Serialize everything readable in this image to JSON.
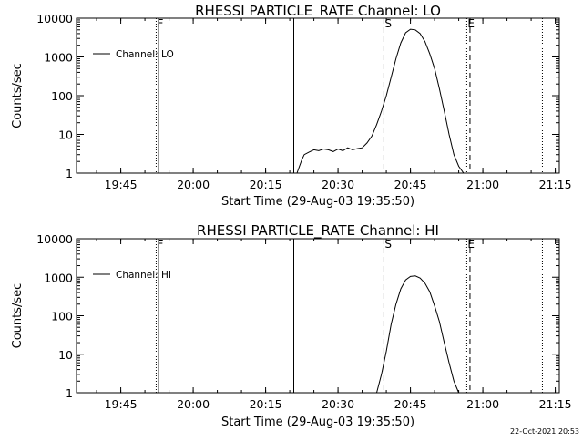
{
  "footer": {
    "timestamp": "22-Oct-2021 20:53"
  },
  "markers": [
    {
      "label": "F",
      "time": "19:52:20",
      "style": "dotted"
    },
    {
      "label": "",
      "time": "19:52:50",
      "style": "solid"
    },
    {
      "label": "",
      "time": "20:20:50",
      "style": "solid"
    },
    {
      "label": "S",
      "time": "20:39:30",
      "style": "dashed"
    },
    {
      "label": "E",
      "time": "20:56:40",
      "style": "dotted"
    },
    {
      "label": "",
      "time": "20:57:20",
      "style": "dashed"
    },
    {
      "label": "",
      "time": "21:12:20",
      "style": "dotted"
    }
  ],
  "chart_data": [
    {
      "type": "line",
      "title": "RHESSI PARTICLE_RATE Channel: LO",
      "xlabel": "Start Time (29-Aug-03 19:35:50)",
      "ylabel": "Counts/sec",
      "xlim": [
        "19:35:50",
        "21:15:50"
      ],
      "x_ticks": [
        "19:45",
        "20:00",
        "20:15",
        "20:30",
        "20:45",
        "21:00",
        "21:15"
      ],
      "y_scale": "log",
      "ylim": [
        1,
        10000
      ],
      "y_ticks": [
        "1",
        "10",
        "100",
        "1000",
        "10000"
      ],
      "legend": "top-left",
      "series": [
        {
          "name": "Channel: LO",
          "x": [
            "20:21:30",
            "20:22:30",
            "20:23:00",
            "20:24:00",
            "20:25:00",
            "20:26:00",
            "20:27:00",
            "20:28:00",
            "20:29:00",
            "20:30:00",
            "20:31:00",
            "20:32:00",
            "20:33:00",
            "20:34:00",
            "20:35:00",
            "20:36:00",
            "20:37:00",
            "20:38:00",
            "20:39:00",
            "20:40:00",
            "20:41:00",
            "20:42:00",
            "20:43:00",
            "20:44:00",
            "20:45:00",
            "20:46:00",
            "20:47:00",
            "20:48:00",
            "20:49:00",
            "20:50:00",
            "20:51:00",
            "20:52:00",
            "20:53:00",
            "20:54:00",
            "20:55:00",
            "20:56:00"
          ],
          "values": [
            1.0,
            2.2,
            3.0,
            3.5,
            4.0,
            3.8,
            4.2,
            4.0,
            3.6,
            4.2,
            3.8,
            4.5,
            4.0,
            4.3,
            4.5,
            6.0,
            9.0,
            18,
            40,
            100,
            300,
            900,
            2300,
            4200,
            5200,
            5000,
            4000,
            2500,
            1200,
            500,
            150,
            40,
            10,
            3,
            1.5,
            1.0
          ]
        }
      ]
    },
    {
      "type": "line",
      "title": "RHESSI PARTICLE_RATE Channel: HI",
      "xlabel": "Start Time (29-Aug-03 19:35:50)",
      "ylabel": "Counts/sec",
      "xlim": [
        "19:35:50",
        "21:15:50"
      ],
      "x_ticks": [
        "19:45",
        "20:00",
        "20:15",
        "20:30",
        "20:45",
        "21:00",
        "21:15"
      ],
      "y_scale": "log",
      "ylim": [
        1,
        10000
      ],
      "y_ticks": [
        "1",
        "10",
        "100",
        "1000",
        "10000"
      ],
      "legend": "top-left",
      "series": [
        {
          "name": "Channel: HI",
          "x": [
            "20:38:00",
            "20:39:00",
            "20:40:00",
            "20:41:00",
            "20:42:00",
            "20:43:00",
            "20:44:00",
            "20:45:00",
            "20:46:00",
            "20:47:00",
            "20:48:00",
            "20:49:00",
            "20:50:00",
            "20:51:00",
            "20:52:00",
            "20:53:00",
            "20:54:00",
            "20:55:00"
          ],
          "values": [
            1.0,
            3.0,
            12,
            60,
            200,
            500,
            850,
            1050,
            1080,
            950,
            700,
            420,
            180,
            70,
            20,
            6,
            2,
            1.0
          ]
        }
      ]
    }
  ]
}
